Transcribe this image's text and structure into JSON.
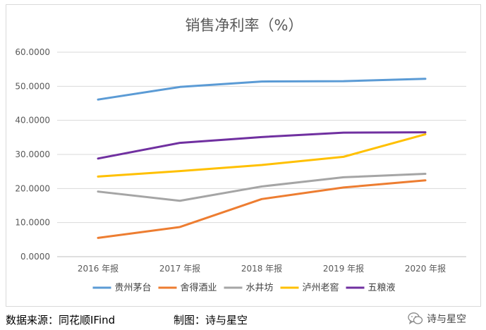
{
  "chart_data": {
    "type": "line",
    "title": "销售净利率（%）",
    "categories": [
      "2016 年报",
      "2017 年报",
      "2018 年报",
      "2019 年报",
      "2020 年报"
    ],
    "ylim": [
      0,
      60
    ],
    "yticks": [
      "0.0000",
      "10.0000",
      "20.0000",
      "30.0000",
      "40.0000",
      "50.0000",
      "60.0000"
    ],
    "grid": true,
    "legend_position": "bottom",
    "series": [
      {
        "name": "贵州茅台",
        "color": "#5b9bd5",
        "values": [
          46.1,
          49.8,
          51.4,
          51.5,
          52.2
        ]
      },
      {
        "name": "舍得酒业",
        "color": "#ed7d31",
        "values": [
          5.5,
          8.7,
          16.9,
          20.3,
          22.4
        ]
      },
      {
        "name": "水井坊",
        "color": "#a5a5a5",
        "values": [
          19.1,
          16.4,
          20.6,
          23.3,
          24.3
        ]
      },
      {
        "name": "泸州老窖",
        "color": "#ffc000",
        "values": [
          23.5,
          25.1,
          26.9,
          29.3,
          35.9
        ]
      },
      {
        "name": "五粮液",
        "color": "#7030a0",
        "values": [
          28.8,
          33.4,
          35.1,
          36.4,
          36.5
        ]
      }
    ]
  },
  "footer": {
    "source": "数据来源：同花顺IFind",
    "credit": "制图：诗与星空"
  },
  "watermark": {
    "text": "诗与星空",
    "icon": "wechat-icon"
  }
}
